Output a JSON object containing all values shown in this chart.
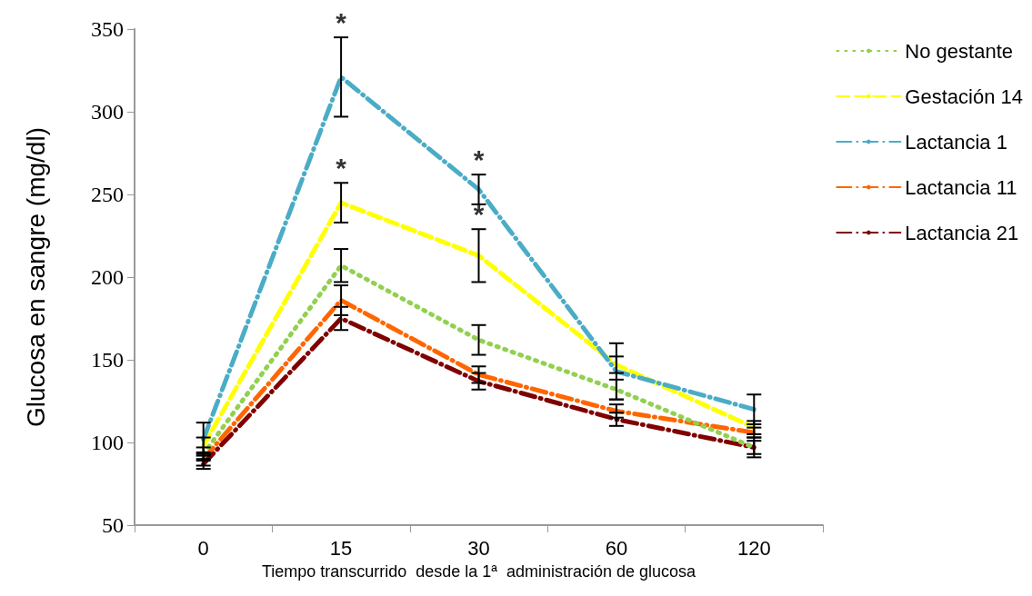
{
  "chart_data": {
    "type": "line",
    "xlabel": "Tiempo transcurrido  desde la 1ª  administración de glucosa",
    "ylabel": "Glucosa en sangre (mg/dl)",
    "categories": [
      "0",
      "15",
      "30",
      "60",
      "120"
    ],
    "series": [
      {
        "name": "No gestante",
        "color": "#92d050",
        "line_style": "dotted",
        "values": [
          93,
          207,
          162,
          132,
          97
        ],
        "errors": [
          4,
          10,
          9,
          6,
          4
        ]
      },
      {
        "name": "Gestación 14",
        "color": "#ffff00",
        "line_style": "dashed",
        "values": [
          98,
          245,
          213,
          147,
          109
        ],
        "errors": [
          5,
          12,
          16,
          5,
          4
        ]
      },
      {
        "name": "Lactancia 1",
        "color": "#4bacc6",
        "line_style": "dashdot",
        "values": [
          102,
          321,
          253,
          143,
          120
        ],
        "errors": [
          10,
          24,
          9,
          17,
          9
        ]
      },
      {
        "name": "Lactancia 11",
        "color": "#ff6600",
        "line_style": "dashdot",
        "values": [
          90,
          186,
          141,
          119,
          106
        ],
        "errors": [
          4,
          9,
          5,
          4,
          3
        ]
      },
      {
        "name": "Lactancia 21",
        "color": "#800000",
        "line_style": "dashdot",
        "values": [
          87,
          175,
          137,
          114,
          97
        ],
        "errors": [
          3,
          7,
          5,
          4,
          6
        ]
      }
    ],
    "annotations": [
      {
        "text": "*",
        "x": "15",
        "y": 345
      },
      {
        "text": "*",
        "x": "15",
        "y": 257
      },
      {
        "text": "*",
        "x": "30",
        "y": 262
      },
      {
        "text": "*",
        "x": "30",
        "y": 229
      }
    ],
    "ylim": [
      50,
      350
    ],
    "yticks": [
      50,
      100,
      150,
      200,
      250,
      300,
      350
    ],
    "grid": false,
    "legend": "right",
    "marker": "none"
  }
}
